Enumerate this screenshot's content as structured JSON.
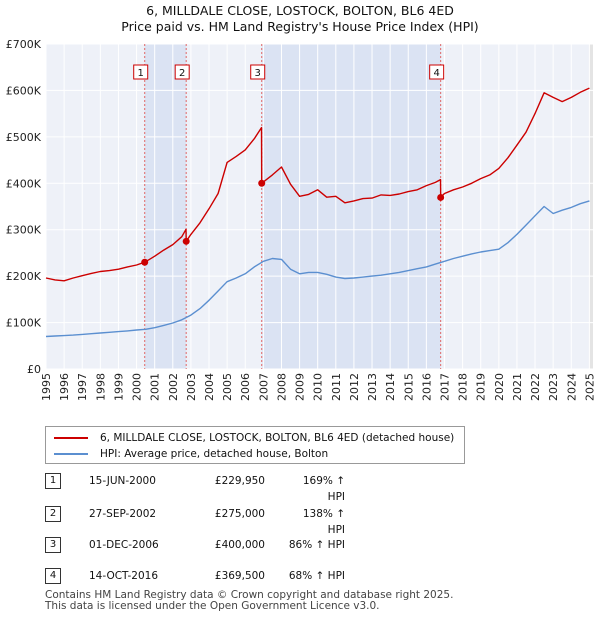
{
  "chart_data": {
    "type": "line",
    "title": "6, MILLDALE CLOSE, LOSTOCK, BOLTON, BL6 4ED",
    "subtitle": "Price paid vs. HM Land Registry's House Price Index (HPI)",
    "xlabel": "",
    "ylabel": "",
    "xlim": [
      1995,
      2025.2
    ],
    "ylim": [
      0,
      700000
    ],
    "yticks": [
      {
        "value": 0,
        "label": "£0"
      },
      {
        "value": 100000,
        "label": "£100K"
      },
      {
        "value": 200000,
        "label": "£200K"
      },
      {
        "value": 300000,
        "label": "£300K"
      },
      {
        "value": 400000,
        "label": "£400K"
      },
      {
        "value": 500000,
        "label": "£500K"
      },
      {
        "value": 600000,
        "label": "£600K"
      },
      {
        "value": 700000,
        "label": "£700K"
      }
    ],
    "xticks": [
      "1995",
      "1996",
      "1997",
      "1998",
      "1999",
      "2000",
      "2001",
      "2002",
      "2003",
      "2004",
      "2005",
      "2006",
      "2007",
      "2008",
      "2009",
      "2010",
      "2011",
      "2012",
      "2013",
      "2014",
      "2015",
      "2016",
      "2017",
      "2018",
      "2019",
      "2020",
      "2021",
      "2022",
      "2023",
      "2024",
      "2025"
    ],
    "grid": true,
    "series": [
      {
        "name": "6, MILLDALE CLOSE, LOSTOCK, BOLTON, BL6 4ED (detached house)",
        "color": "#cc0000",
        "x": [
          1995.0,
          1995.5,
          1996.0,
          1996.5,
          1997.0,
          1997.5,
          1998.0,
          1998.5,
          1999.0,
          1999.5,
          2000.0,
          2000.45,
          2000.46,
          2001.0,
          2001.5,
          2002.0,
          2002.5,
          2002.73,
          2002.74,
          2003.0,
          2003.5,
          2004.0,
          2004.5,
          2005.0,
          2005.5,
          2006.0,
          2006.5,
          2006.9,
          2006.91,
          2007.0,
          2007.5,
          2008.0,
          2008.5,
          2009.0,
          2009.5,
          2010.0,
          2010.5,
          2011.0,
          2011.5,
          2012.0,
          2012.5,
          2013.0,
          2013.5,
          2014.0,
          2014.5,
          2015.0,
          2015.5,
          2016.0,
          2016.5,
          2016.78,
          2016.79,
          2017.0,
          2017.5,
          2018.0,
          2018.5,
          2019.0,
          2019.5,
          2020.0,
          2020.5,
          2021.0,
          2021.5,
          2022.0,
          2022.5,
          2023.0,
          2023.5,
          2024.0,
          2024.5,
          2025.0
        ],
        "y": [
          196000,
          192000,
          190000,
          196000,
          201000,
          206000,
          210000,
          212000,
          215000,
          220000,
          224000,
          229950,
          230000,
          243000,
          256000,
          268000,
          285000,
          301000,
          275000,
          290000,
          315000,
          345000,
          378000,
          445000,
          458000,
          472000,
          496000,
          520000,
          400000,
          403000,
          418000,
          435000,
          398000,
          372000,
          376000,
          386000,
          370000,
          372000,
          358000,
          362000,
          367000,
          368000,
          375000,
          374000,
          377000,
          382000,
          386000,
          395000,
          402000,
          408000,
          369500,
          378000,
          386000,
          392000,
          400000,
          410000,
          418000,
          432000,
          455000,
          482000,
          510000,
          550000,
          595000,
          585000,
          576000,
          585000,
          596000,
          605000
        ]
      },
      {
        "name": "HPI: Average price, detached house, Bolton",
        "color": "#5b8fd0",
        "x": [
          1995.0,
          1995.5,
          1996.0,
          1996.5,
          1997.0,
          1997.5,
          1998.0,
          1998.5,
          1999.0,
          1999.5,
          2000.0,
          2000.5,
          2001.0,
          2001.5,
          2002.0,
          2002.5,
          2003.0,
          2003.5,
          2004.0,
          2004.5,
          2005.0,
          2005.5,
          2006.0,
          2006.5,
          2007.0,
          2007.5,
          2008.0,
          2008.5,
          2009.0,
          2009.5,
          2010.0,
          2010.5,
          2011.0,
          2011.5,
          2012.0,
          2012.5,
          2013.0,
          2013.5,
          2014.0,
          2014.5,
          2015.0,
          2015.5,
          2016.0,
          2016.5,
          2017.0,
          2017.5,
          2018.0,
          2018.5,
          2019.0,
          2019.5,
          2020.0,
          2020.5,
          2021.0,
          2021.5,
          2022.0,
          2022.5,
          2023.0,
          2023.5,
          2024.0,
          2024.5,
          2025.0
        ],
        "y": [
          70000,
          71000,
          72000,
          73000,
          74500,
          76000,
          77500,
          79000,
          80500,
          82000,
          84000,
          85500,
          89000,
          94000,
          99000,
          106000,
          116000,
          130000,
          148000,
          168000,
          188000,
          196000,
          205000,
          220000,
          232000,
          238000,
          236000,
          215000,
          205000,
          208000,
          208000,
          204000,
          198000,
          195000,
          196000,
          198000,
          200000,
          202000,
          205000,
          208000,
          212000,
          216000,
          220000,
          226000,
          232000,
          238000,
          243000,
          248000,
          252000,
          255000,
          258000,
          272000,
          290000,
          310000,
          330000,
          350000,
          335000,
          342000,
          348000,
          356000,
          362000
        ]
      }
    ],
    "sales": [
      {
        "num": "1",
        "x": 2000.45,
        "price": 229950
      },
      {
        "num": "2",
        "x": 2002.74,
        "price": 275000
      },
      {
        "num": "3",
        "x": 2006.91,
        "price": 400000
      },
      {
        "num": "4",
        "x": 2016.79,
        "price": 369500
      }
    ],
    "shaded_periods": [
      [
        2000.45,
        2002.74
      ],
      [
        2006.91,
        2016.79
      ]
    ]
  },
  "legend": {
    "property": "6, MILLDALE CLOSE, LOSTOCK, BOLTON, BL6 4ED (detached house)",
    "hpi": "HPI: Average price, detached house, Bolton",
    "property_color": "#cc0000",
    "hpi_color": "#5b8fd0"
  },
  "sales_table": [
    {
      "num": "1",
      "date": "15-JUN-2000",
      "price": "£229,950",
      "hpi": "169% ↑ HPI"
    },
    {
      "num": "2",
      "date": "27-SEP-2002",
      "price": "£275,000",
      "hpi": "138% ↑ HPI"
    },
    {
      "num": "3",
      "date": "01-DEC-2006",
      "price": "£400,000",
      "hpi": "86% ↑ HPI"
    },
    {
      "num": "4",
      "date": "14-OCT-2016",
      "price": "£369,500",
      "hpi": "68% ↑ HPI"
    }
  ],
  "footer": {
    "line1": "Contains HM Land Registry data © Crown copyright and database right 2025.",
    "line2": "This data is licensed under the Open Government Licence v3.0."
  }
}
